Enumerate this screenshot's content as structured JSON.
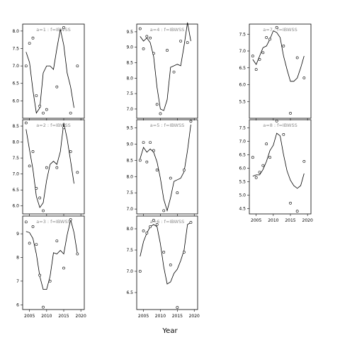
{
  "chart_data": {
    "type": "line",
    "xlabel": "Year",
    "x_ticks": [
      2005,
      2010,
      2015,
      2020
    ],
    "x_range": [
      2003,
      2021
    ],
    "panels": [
      {
        "id": "a1",
        "title": "a=1  :  f=IBWSS",
        "ylim": [
          5.5,
          8.2
        ],
        "yticks": [
          6.0,
          6.5,
          7.0,
          7.5,
          8.0
        ],
        "ytick_labels": [
          "6.0",
          "6.5",
          "7.0",
          "7.5",
          "8.0"
        ],
        "x_labels_shown": false,
        "points": [
          [
            2004,
            7.0
          ],
          [
            2005,
            7.65
          ],
          [
            2006,
            7.8
          ],
          [
            2007,
            6.15
          ],
          [
            2008,
            5.85
          ],
          [
            2009,
            5.65
          ],
          [
            2010,
            5.75
          ],
          [
            2013,
            6.4
          ],
          [
            2015,
            8.1
          ],
          [
            2017,
            5.65
          ],
          [
            2019,
            7.0
          ]
        ],
        "fit": [
          [
            2004,
            7.4
          ],
          [
            2005,
            7.1
          ],
          [
            2006,
            6.3
          ],
          [
            2007,
            5.65
          ],
          [
            2008,
            5.8
          ],
          [
            2009,
            6.8
          ],
          [
            2010,
            7.0
          ],
          [
            2011,
            7.0
          ],
          [
            2012,
            6.9
          ],
          [
            2013,
            7.5
          ],
          [
            2014,
            8.05
          ],
          [
            2015,
            7.6
          ],
          [
            2016,
            6.8
          ],
          [
            2017,
            6.4
          ],
          [
            2018,
            5.8
          ]
        ]
      },
      {
        "id": "a2",
        "title": "a=2  :  f=IBWSS",
        "ylim": [
          5.75,
          8.7
        ],
        "yticks": [
          6.0,
          6.5,
          7.0,
          7.5,
          8.0,
          8.5
        ],
        "ytick_labels": [
          "6.0",
          "6.5",
          "7.0",
          "7.5",
          "8.0",
          "8.5"
        ],
        "x_labels_shown": false,
        "points": [
          [
            2004,
            8.6
          ],
          [
            2005,
            7.25
          ],
          [
            2006,
            7.7
          ],
          [
            2007,
            6.55
          ],
          [
            2008,
            6.25
          ],
          [
            2009,
            5.85
          ],
          [
            2010,
            7.2
          ],
          [
            2013,
            7.2
          ],
          [
            2015,
            8.45
          ],
          [
            2017,
            7.7
          ],
          [
            2019,
            7.05
          ]
        ],
        "fit": [
          [
            2004,
            8.4
          ],
          [
            2005,
            7.75
          ],
          [
            2006,
            7.15
          ],
          [
            2007,
            6.3
          ],
          [
            2008,
            5.95
          ],
          [
            2009,
            6.1
          ],
          [
            2010,
            6.8
          ],
          [
            2011,
            7.3
          ],
          [
            2012,
            7.4
          ],
          [
            2013,
            7.3
          ],
          [
            2014,
            7.7
          ],
          [
            2015,
            8.6
          ],
          [
            2016,
            8.1
          ],
          [
            2017,
            7.4
          ],
          [
            2018,
            6.7
          ]
        ]
      },
      {
        "id": "a3",
        "title": "a=3  :  f=IBWSS",
        "ylim": [
          5.8,
          9.75
        ],
        "yticks": [
          6,
          7,
          8,
          9
        ],
        "ytick_labels": [
          "6",
          "7",
          "8",
          "9"
        ],
        "x_labels_shown": true,
        "points": [
          [
            2004,
            9.5
          ],
          [
            2005,
            8.6
          ],
          [
            2006,
            9.3
          ],
          [
            2007,
            8.55
          ],
          [
            2008,
            7.25
          ],
          [
            2009,
            5.9
          ],
          [
            2011,
            7.0
          ],
          [
            2013,
            8.7
          ],
          [
            2015,
            7.55
          ],
          [
            2017,
            9.6
          ],
          [
            2019,
            8.15
          ]
        ],
        "fit": [
          [
            2004,
            9.1
          ],
          [
            2005,
            9.05
          ],
          [
            2006,
            8.8
          ],
          [
            2007,
            8.15
          ],
          [
            2008,
            7.2
          ],
          [
            2009,
            6.65
          ],
          [
            2010,
            6.65
          ],
          [
            2011,
            7.2
          ],
          [
            2012,
            8.2
          ],
          [
            2013,
            8.15
          ],
          [
            2014,
            8.3
          ],
          [
            2015,
            8.15
          ],
          [
            2016,
            8.95
          ],
          [
            2017,
            9.6
          ],
          [
            2018,
            9.05
          ],
          [
            2019,
            8.15
          ]
        ]
      },
      {
        "id": "a4",
        "title": "a=4  :  f=IBWSS",
        "ylim": [
          6.7,
          9.75
        ],
        "yticks": [
          7.0,
          7.5,
          8.0,
          8.5,
          9.0,
          9.5
        ],
        "ytick_labels": [
          "7.0",
          "7.5",
          "8.0",
          "8.5",
          "9.0",
          "9.5"
        ],
        "x_labels_shown": false,
        "points": [
          [
            2004,
            9.6
          ],
          [
            2005,
            8.95
          ],
          [
            2006,
            9.35
          ],
          [
            2007,
            9.3
          ],
          [
            2008,
            8.8
          ],
          [
            2009,
            7.15
          ],
          [
            2010,
            6.85
          ],
          [
            2012,
            8.9
          ],
          [
            2014,
            8.2
          ],
          [
            2016,
            9.2
          ],
          [
            2018,
            9.15
          ]
        ],
        "fit": [
          [
            2004,
            9.35
          ],
          [
            2005,
            9.2
          ],
          [
            2006,
            9.3
          ],
          [
            2007,
            9.15
          ],
          [
            2008,
            8.7
          ],
          [
            2009,
            7.7
          ],
          [
            2010,
            7.0
          ],
          [
            2011,
            6.95
          ],
          [
            2012,
            7.3
          ],
          [
            2013,
            8.35
          ],
          [
            2014,
            8.4
          ],
          [
            2015,
            8.45
          ],
          [
            2016,
            8.4
          ],
          [
            2017,
            9.05
          ],
          [
            2018,
            9.8
          ],
          [
            2019,
            9.2
          ]
        ]
      },
      {
        "id": "a5",
        "title": "a=5  :  f=IBWSS",
        "ylim": [
          6.85,
          9.75
        ],
        "yticks": [
          7.0,
          7.5,
          8.0,
          8.5,
          9.0,
          9.5
        ],
        "ytick_labels": [
          "7.0",
          "7.5",
          "8.0",
          "8.5",
          "9.0",
          "9.5"
        ],
        "x_labels_shown": false,
        "points": [
          [
            2004,
            8.5
          ],
          [
            2005,
            9.05
          ],
          [
            2006,
            8.45
          ],
          [
            2007,
            9.05
          ],
          [
            2008,
            8.8
          ],
          [
            2009,
            8.2
          ],
          [
            2011,
            6.95
          ],
          [
            2013,
            7.95
          ],
          [
            2015,
            7.5
          ],
          [
            2017,
            8.2
          ],
          [
            2019,
            9.7
          ]
        ],
        "fit": [
          [
            2004,
            8.55
          ],
          [
            2005,
            8.9
          ],
          [
            2006,
            8.75
          ],
          [
            2007,
            8.85
          ],
          [
            2008,
            8.75
          ],
          [
            2009,
            8.45
          ],
          [
            2010,
            7.95
          ],
          [
            2011,
            7.3
          ],
          [
            2012,
            6.95
          ],
          [
            2013,
            7.35
          ],
          [
            2014,
            7.85
          ],
          [
            2015,
            7.9
          ],
          [
            2016,
            7.95
          ],
          [
            2017,
            8.15
          ],
          [
            2018,
            8.8
          ],
          [
            2019,
            9.6
          ]
        ]
      },
      {
        "id": "a6",
        "title": "a=6  :  f=IBWSS",
        "ylim": [
          6.1,
          8.3
        ],
        "yticks": [
          6.5,
          7.0,
          7.5,
          8.0
        ],
        "ytick_labels": [
          "6.5",
          "7.0",
          "7.5",
          "8.0"
        ],
        "x_labels_shown": true,
        "points": [
          [
            2004,
            7.0
          ],
          [
            2005,
            7.95
          ],
          [
            2006,
            7.9
          ],
          [
            2007,
            8.05
          ],
          [
            2008,
            8.2
          ],
          [
            2009,
            8.1
          ],
          [
            2011,
            7.45
          ],
          [
            2013,
            7.15
          ],
          [
            2015,
            6.15
          ],
          [
            2017,
            7.45
          ],
          [
            2019,
            8.15
          ]
        ],
        "fit": [
          [
            2004,
            7.35
          ],
          [
            2005,
            7.7
          ],
          [
            2006,
            7.9
          ],
          [
            2007,
            8.05
          ],
          [
            2008,
            8.1
          ],
          [
            2009,
            8.05
          ],
          [
            2010,
            7.65
          ],
          [
            2011,
            7.1
          ],
          [
            2012,
            6.7
          ],
          [
            2013,
            6.75
          ],
          [
            2014,
            6.95
          ],
          [
            2015,
            7.05
          ],
          [
            2016,
            7.25
          ],
          [
            2017,
            7.5
          ],
          [
            2018,
            8.1
          ],
          [
            2019,
            8.15
          ]
        ]
      },
      {
        "id": "a7",
        "title": "a=7  :  f=IBWSS",
        "ylim": [
          5.0,
          7.8
        ],
        "yticks": [
          5.5,
          6.0,
          6.5,
          7.0,
          7.5
        ],
        "ytick_labels": [
          "5.5",
          "6.0",
          "6.5",
          "7.0",
          "7.5"
        ],
        "x_labels_shown": false,
        "points": [
          [
            2004,
            6.85
          ],
          [
            2005,
            6.45
          ],
          [
            2006,
            6.75
          ],
          [
            2007,
            6.95
          ],
          [
            2008,
            7.4
          ],
          [
            2009,
            7.35
          ],
          [
            2011,
            7.7
          ],
          [
            2013,
            7.15
          ],
          [
            2015,
            5.15
          ],
          [
            2017,
            6.8
          ],
          [
            2019,
            6.2
          ]
        ],
        "fit": [
          [
            2004,
            6.75
          ],
          [
            2005,
            6.6
          ],
          [
            2006,
            6.85
          ],
          [
            2007,
            7.1
          ],
          [
            2008,
            7.15
          ],
          [
            2009,
            7.35
          ],
          [
            2010,
            7.6
          ],
          [
            2011,
            7.55
          ],
          [
            2012,
            7.4
          ],
          [
            2013,
            6.85
          ],
          [
            2014,
            6.45
          ],
          [
            2015,
            6.1
          ],
          [
            2016,
            6.1
          ],
          [
            2017,
            6.2
          ],
          [
            2018,
            6.5
          ],
          [
            2019,
            6.85
          ]
        ]
      },
      {
        "id": "a8",
        "title": "a=8  :  f=IBWSS",
        "ylim": [
          4.3,
          7.8
        ],
        "yticks": [
          4.5,
          5.0,
          5.5,
          6.0,
          6.5,
          7.0,
          7.5
        ],
        "ytick_labels": [
          "4.5",
          "5.0",
          "5.5",
          "6.0",
          "6.5",
          "7.0",
          "7.5"
        ],
        "x_labels_shown": true,
        "points": [
          [
            2004,
            6.4
          ],
          [
            2005,
            5.65
          ],
          [
            2006,
            5.85
          ],
          [
            2007,
            6.1
          ],
          [
            2008,
            6.9
          ],
          [
            2009,
            6.4
          ],
          [
            2011,
            7.75
          ],
          [
            2013,
            7.25
          ],
          [
            2015,
            4.7
          ],
          [
            2017,
            4.4
          ],
          [
            2019,
            6.25
          ]
        ],
        "fit": [
          [
            2004,
            5.7
          ],
          [
            2005,
            5.75
          ],
          [
            2006,
            5.75
          ],
          [
            2007,
            5.95
          ],
          [
            2008,
            6.25
          ],
          [
            2009,
            6.65
          ],
          [
            2010,
            6.85
          ],
          [
            2011,
            7.3
          ],
          [
            2012,
            7.2
          ],
          [
            2013,
            6.5
          ],
          [
            2014,
            5.9
          ],
          [
            2015,
            5.55
          ],
          [
            2016,
            5.35
          ],
          [
            2017,
            5.25
          ],
          [
            2018,
            5.35
          ],
          [
            2019,
            5.8
          ]
        ]
      }
    ]
  }
}
